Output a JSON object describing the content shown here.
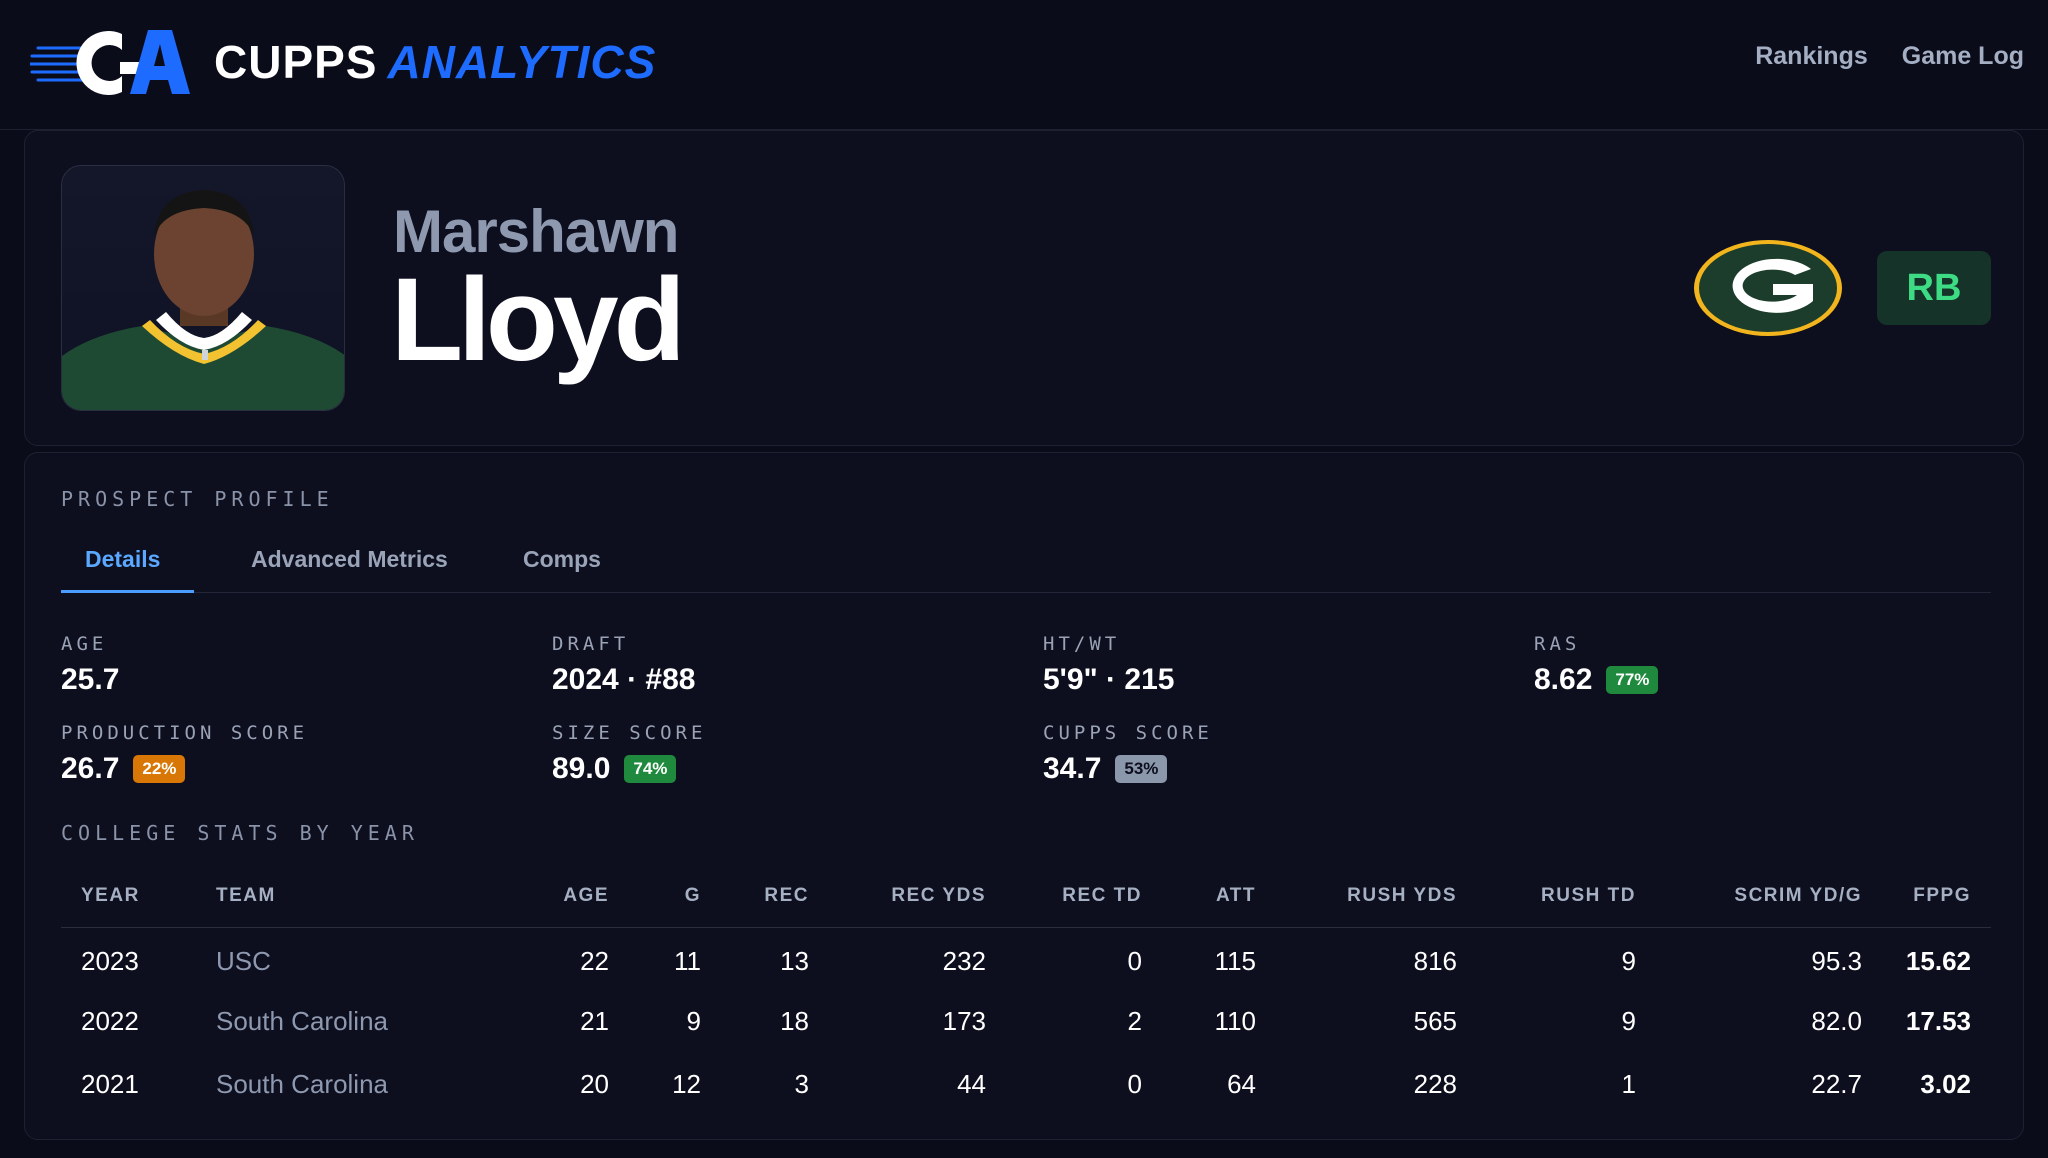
{
  "brand": {
    "word1": "CUPPS",
    "word2": "ANALYTICS",
    "accent": "#1e6bff"
  },
  "nav": [
    {
      "label": "Rankings"
    },
    {
      "label": "Game Log"
    }
  ],
  "player": {
    "first_name": "Marshawn",
    "last_name": "Lloyd",
    "position": "RB",
    "team_logo": "packers-g-icon"
  },
  "profile": {
    "section_label": "PROSPECT PROFILE",
    "tabs": [
      {
        "label": "Details"
      },
      {
        "label": "Advanced Metrics"
      },
      {
        "label": "Comps"
      }
    ],
    "stats": {
      "age": {
        "label": "AGE",
        "value": "25.7"
      },
      "draft": {
        "label": "DRAFT",
        "value": "2024 · #88"
      },
      "htwt": {
        "label": "HT/WT",
        "value": "5'9\" · 215"
      },
      "ras": {
        "label": "RAS",
        "value": "8.62",
        "pct": "77%",
        "color": "#1f8a3d"
      },
      "production": {
        "label": "PRODUCTION SCORE",
        "value": "26.7",
        "pct": "22%",
        "color": "#d97706"
      },
      "size": {
        "label": "SIZE SCORE",
        "value": "89.0",
        "pct": "74%",
        "color": "#1f8a3d"
      },
      "cupps": {
        "label": "CUPPS SCORE",
        "value": "34.7",
        "pct": "53%",
        "color": "#8b97ab"
      }
    }
  },
  "college": {
    "label": "COLLEGE STATS BY YEAR",
    "headers": {
      "year": "YEAR",
      "team": "TEAM",
      "age": "AGE",
      "g": "G",
      "rec": "REC",
      "rec_yds": "REC YDS",
      "rec_td": "REC TD",
      "att": "ATT",
      "rush_yds": "RUSH YDS",
      "rush_td": "RUSH TD",
      "scrim": "SCRIM YD/G",
      "fppg": "FPPG"
    },
    "rows": [
      {
        "year": "2023",
        "team": "USC",
        "age": "22",
        "g": "11",
        "rec": "13",
        "rec_yds": "232",
        "rec_td": "0",
        "att": "115",
        "rush_yds": "816",
        "rush_td": "9",
        "scrim": "95.3",
        "fppg": "15.62"
      },
      {
        "year": "2022",
        "team": "South Carolina",
        "age": "21",
        "g": "9",
        "rec": "18",
        "rec_yds": "173",
        "rec_td": "2",
        "att": "110",
        "rush_yds": "565",
        "rush_td": "9",
        "scrim": "82.0",
        "fppg": "17.53"
      },
      {
        "year": "2021",
        "team": "South Carolina",
        "age": "20",
        "g": "12",
        "rec": "3",
        "rec_yds": "44",
        "rec_td": "0",
        "att": "64",
        "rush_yds": "228",
        "rush_td": "1",
        "scrim": "22.7",
        "fppg": "3.02"
      }
    ]
  }
}
